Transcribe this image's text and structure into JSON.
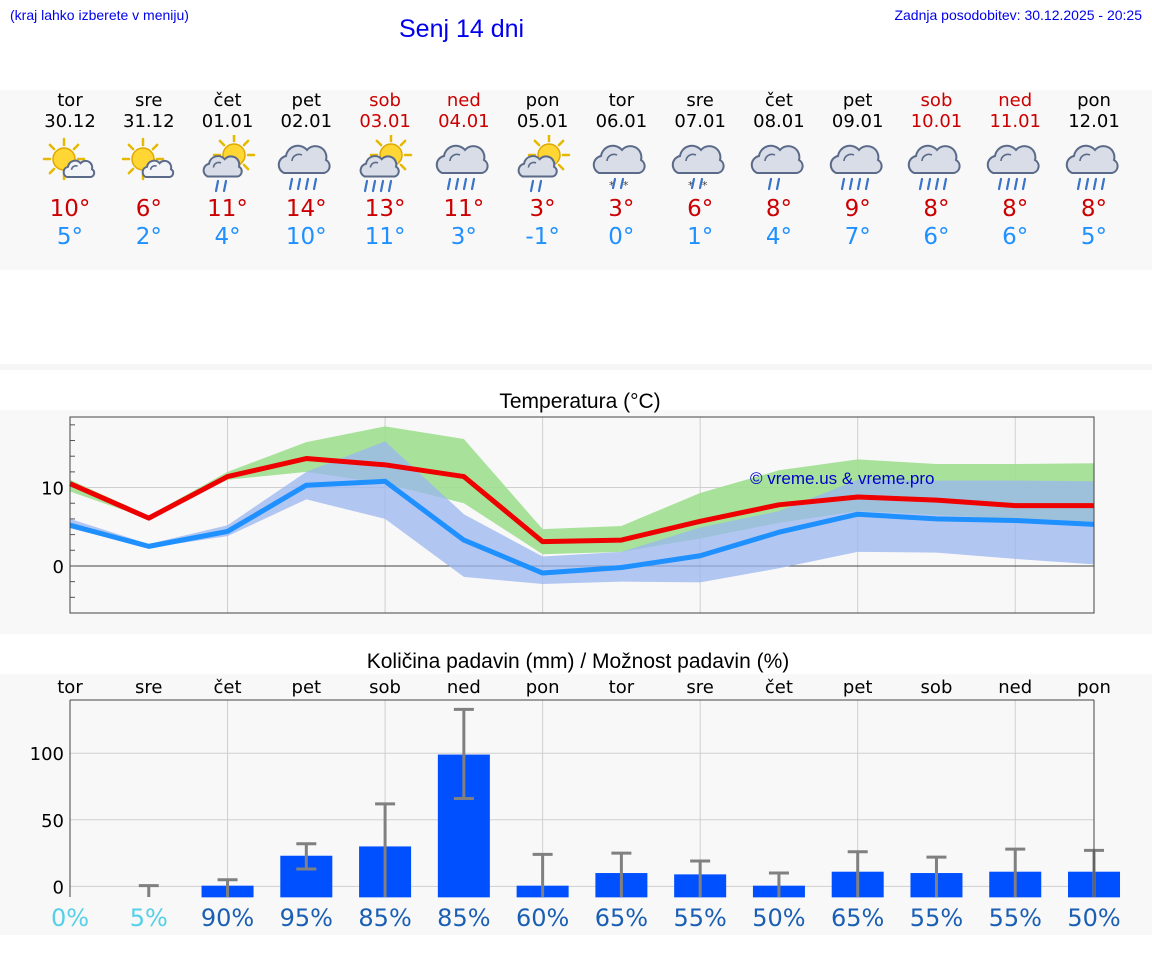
{
  "header": {
    "location_hint": "(kraj lahko izberete v meniju)",
    "title": "Senj 14 dni",
    "updated": "Zadnja posodobitev: 30.12.2025 - 20:25"
  },
  "days": [
    {
      "name": "tor",
      "date": "30.12",
      "weekend": false,
      "icon": "sun-cloud-icon",
      "max": "10°",
      "min": "5°"
    },
    {
      "name": "sre",
      "date": "31.12",
      "weekend": false,
      "icon": "sun-cloud-icon",
      "max": "6°",
      "min": "2°"
    },
    {
      "name": "čet",
      "date": "01.01",
      "weekend": false,
      "icon": "sun-cloud-rain-icon",
      "max": "11°",
      "min": "4°"
    },
    {
      "name": "pet",
      "date": "02.01",
      "weekend": false,
      "icon": "cloud-rain-icon",
      "max": "14°",
      "min": "10°"
    },
    {
      "name": "sob",
      "date": "03.01",
      "weekend": true,
      "icon": "sun-cloud-heavy-rain-icon",
      "max": "13°",
      "min": "11°"
    },
    {
      "name": "ned",
      "date": "04.01",
      "weekend": true,
      "icon": "cloud-rain-icon",
      "max": "11°",
      "min": "3°"
    },
    {
      "name": "pon",
      "date": "05.01",
      "weekend": false,
      "icon": "sun-cloud-rain-icon",
      "max": "3°",
      "min": "-1°"
    },
    {
      "name": "tor",
      "date": "06.01",
      "weekend": false,
      "icon": "cloud-sleet-icon",
      "max": "3°",
      "min": "0°"
    },
    {
      "name": "sre",
      "date": "07.01",
      "weekend": false,
      "icon": "cloud-sleet-icon",
      "max": "6°",
      "min": "1°"
    },
    {
      "name": "čet",
      "date": "08.01",
      "weekend": false,
      "icon": "cloud-light-rain-icon",
      "max": "8°",
      "min": "4°"
    },
    {
      "name": "pet",
      "date": "09.01",
      "weekend": false,
      "icon": "cloud-rain-icon",
      "max": "9°",
      "min": "7°"
    },
    {
      "name": "sob",
      "date": "10.01",
      "weekend": true,
      "icon": "cloud-rain-icon",
      "max": "8°",
      "min": "6°"
    },
    {
      "name": "ned",
      "date": "11.01",
      "weekend": true,
      "icon": "cloud-rain-icon",
      "max": "8°",
      "min": "6°"
    },
    {
      "name": "pon",
      "date": "12.01",
      "weekend": false,
      "icon": "cloud-rain-icon",
      "max": "8°",
      "min": "5°"
    }
  ],
  "colors": {
    "max_line": "#ee0000",
    "min_line": "#1e90ff",
    "max_band": "#9fdf8f",
    "min_band": "#9bb5f0",
    "overlap_band": "#6dbfa0",
    "bar": "#0050ff",
    "whisker": "#808080",
    "prob_low": "#55d0e8",
    "prob_high": "#1a5fb4"
  },
  "chart_data": [
    {
      "type": "line",
      "title": "Temperatura (°C)",
      "watermark": "© vreme.us & vreme.pro",
      "ylim": [
        -6,
        19
      ],
      "yticks": [
        0,
        10
      ],
      "grid": true,
      "series": [
        {
          "name": "max",
          "values": [
            10.5,
            6.1,
            11.4,
            13.7,
            12.9,
            11.4,
            3.1,
            3.3,
            5.7,
            7.8,
            8.8,
            8.4,
            7.7,
            7.7
          ],
          "band_low": [
            9.5,
            6.0,
            11.0,
            12.0,
            10.5,
            8.0,
            1.5,
            1.8,
            3.5,
            5.5,
            7.0,
            6.5,
            6.0,
            5.5
          ],
          "band_high": [
            11.0,
            6.4,
            12.0,
            15.8,
            17.8,
            16.2,
            4.7,
            5.1,
            9.3,
            12.2,
            13.6,
            13.0,
            13.0,
            13.1
          ]
        },
        {
          "name": "min",
          "values": [
            5.2,
            2.5,
            4.4,
            10.3,
            10.8,
            3.3,
            -0.9,
            -0.2,
            1.3,
            4.3,
            6.6,
            6.0,
            5.8,
            5.3
          ],
          "band_low": [
            4.8,
            2.3,
            3.8,
            8.5,
            6.0,
            -1.4,
            -2.3,
            -2.0,
            -2.1,
            -0.3,
            1.8,
            1.7,
            0.9,
            0.2
          ],
          "band_high": [
            6.0,
            2.8,
            5.2,
            12.0,
            15.9,
            6.6,
            1.2,
            1.8,
            4.9,
            7.0,
            11.0,
            10.9,
            10.9,
            10.8
          ]
        }
      ]
    },
    {
      "type": "bar",
      "title": "Količina padavin (mm) / Možnost padavin (%)",
      "categories": [
        "tor",
        "sre",
        "čet",
        "pet",
        "sob",
        "ned",
        "pon",
        "tor",
        "sre",
        "čet",
        "pet",
        "sob",
        "ned",
        "pon"
      ],
      "values": [
        0,
        0,
        0.5,
        23,
        30,
        99,
        0.5,
        10,
        9,
        0.5,
        11,
        10,
        11,
        11
      ],
      "error_low": [
        0,
        0,
        0,
        13,
        0,
        66,
        0,
        0,
        0,
        0,
        0,
        0,
        0,
        0
      ],
      "error_high": [
        0,
        0.5,
        5,
        32,
        62,
        133,
        24,
        25,
        19,
        10,
        26,
        22,
        28,
        27
      ],
      "probabilities": [
        "0%",
        "5%",
        "90%",
        "95%",
        "85%",
        "85%",
        "60%",
        "65%",
        "55%",
        "50%",
        "65%",
        "55%",
        "55%",
        "50%"
      ],
      "ylim": [
        -8,
        140
      ],
      "yticks": [
        0,
        50,
        100
      ],
      "grid": true
    }
  ]
}
